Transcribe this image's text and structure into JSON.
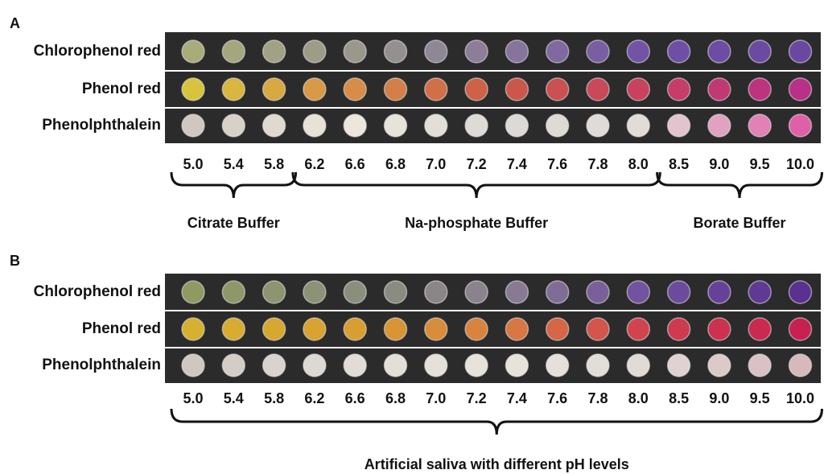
{
  "panels": [
    {
      "label": "A",
      "rows": [
        "Chlorophenol red",
        "Phenol red",
        "Phenolphthalein"
      ],
      "ph": [
        "5.0",
        "5.4",
        "5.8",
        "6.2",
        "6.6",
        "6.8",
        "7.0",
        "7.2",
        "7.4",
        "7.6",
        "7.8",
        "8.0",
        "8.5",
        "9.0",
        "9.5",
        "10.0"
      ],
      "groups": [
        "Citrate Buffer",
        "Na-phosphate Buffer",
        "Borate Buffer"
      ]
    },
    {
      "label": "B",
      "rows": [
        "Chlorophenol red",
        "Phenol red",
        "Phenolphthalein"
      ],
      "ph": [
        "5.0",
        "5.4",
        "5.8",
        "6.2",
        "6.6",
        "6.8",
        "7.0",
        "7.2",
        "7.4",
        "7.6",
        "7.8",
        "8.0",
        "8.5",
        "9.0",
        "9.5",
        "10.0"
      ],
      "groups": [
        "Artificial saliva with different pH levels"
      ]
    }
  ]
}
